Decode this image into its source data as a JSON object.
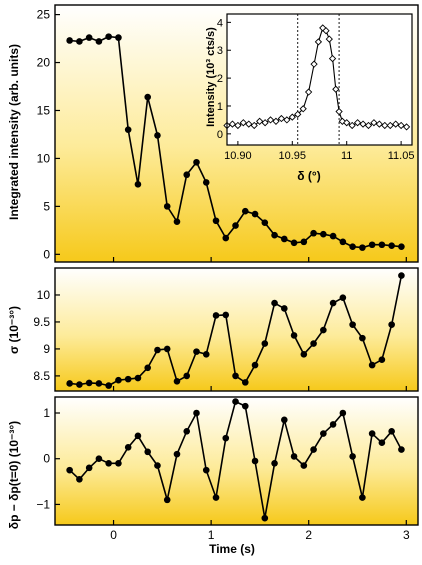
{
  "chart_data": [
    {
      "type": "line",
      "ylabel": "Integrated intensity (arb. units)",
      "xlim": [
        -0.45,
        3.0
      ],
      "ylim": [
        -0.8,
        26
      ],
      "yticks": [
        0,
        5,
        10,
        15,
        20,
        25
      ],
      "grid": false,
      "background": "gradient white-to-yellow",
      "series": [
        {
          "x": [
            -0.45,
            -0.35,
            -0.25,
            -0.15,
            -0.05,
            0.05,
            0.15,
            0.25,
            0.35,
            0.45,
            0.55,
            0.65,
            0.75,
            0.85,
            0.95,
            1.05,
            1.15,
            1.25,
            1.35,
            1.45,
            1.55,
            1.65,
            1.75,
            1.85,
            1.95,
            2.05,
            2.15,
            2.25,
            2.35,
            2.45,
            2.55,
            2.65,
            2.75,
            2.85,
            2.95
          ],
          "values": [
            22.3,
            22.2,
            22.6,
            22.2,
            22.7,
            22.6,
            13.0,
            7.3,
            16.4,
            12.4,
            5.0,
            3.4,
            8.3,
            9.6,
            7.5,
            3.5,
            1.7,
            3.0,
            4.5,
            4.2,
            3.3,
            2.0,
            1.6,
            1.2,
            1.3,
            2.2,
            2.1,
            1.9,
            1.3,
            0.8,
            0.7,
            1.0,
            1.0,
            0.9,
            0.8
          ]
        }
      ],
      "inset": {
        "type": "scatter",
        "xlabel": "δ (°)",
        "ylabel": "Intensity (10³ cts/s)",
        "xlim": [
          10.89,
          11.06
        ],
        "ylim": [
          -0.4,
          4.3
        ],
        "xticks": [
          "10.90",
          "10.95",
          "11",
          "11.05"
        ],
        "xtick_values": [
          10.9,
          10.95,
          11.0,
          11.05
        ],
        "yticks": [
          0,
          1,
          2,
          3,
          4
        ],
        "vlines": [
          10.955,
          10.993
        ],
        "marker": "open-diamond",
        "series": [
          {
            "x": [
              10.89,
              10.895,
              10.9,
              10.905,
              10.91,
              10.915,
              10.92,
              10.925,
              10.93,
              10.935,
              10.94,
              10.945,
              10.95,
              10.955,
              10.96,
              10.965,
              10.97,
              10.974,
              10.978,
              10.981,
              10.984,
              10.987,
              10.99,
              10.993,
              10.996,
              11.0,
              11.005,
              11.01,
              11.015,
              11.02,
              11.025,
              11.03,
              11.035,
              11.04,
              11.045,
              11.05,
              11.055
            ],
            "values": [
              0.3,
              0.35,
              0.3,
              0.4,
              0.35,
              0.3,
              0.45,
              0.4,
              0.5,
              0.45,
              0.55,
              0.5,
              0.6,
              0.7,
              0.9,
              1.5,
              2.5,
              3.3,
              3.8,
              3.7,
              3.4,
              2.7,
              1.6,
              0.8,
              0.45,
              0.4,
              0.3,
              0.4,
              0.35,
              0.3,
              0.4,
              0.35,
              0.3,
              0.3,
              0.35,
              0.3,
              0.25
            ]
          }
        ]
      }
    },
    {
      "type": "line",
      "ylabel": "σ (10⁻³°)",
      "xlim": [
        -0.45,
        3.0
      ],
      "ylim": [
        8.22,
        10.5
      ],
      "yticks": [
        8.5,
        9,
        9.5,
        10
      ],
      "series": [
        {
          "x": [
            -0.45,
            -0.35,
            -0.25,
            -0.15,
            -0.05,
            0.05,
            0.15,
            0.25,
            0.35,
            0.45,
            0.55,
            0.65,
            0.75,
            0.85,
            0.95,
            1.05,
            1.15,
            1.25,
            1.35,
            1.45,
            1.55,
            1.65,
            1.75,
            1.85,
            1.95,
            2.05,
            2.15,
            2.25,
            2.35,
            2.45,
            2.55,
            2.65,
            2.75,
            2.85,
            2.95
          ],
          "values": [
            8.36,
            8.34,
            8.37,
            8.36,
            8.32,
            8.42,
            8.44,
            8.46,
            8.65,
            8.98,
            9.0,
            8.4,
            8.5,
            8.95,
            8.9,
            9.62,
            9.63,
            8.5,
            8.38,
            8.7,
            9.1,
            9.85,
            9.75,
            9.25,
            8.9,
            9.1,
            9.35,
            9.85,
            9.95,
            9.45,
            9.2,
            8.7,
            8.8,
            9.45,
            10.36
          ]
        }
      ]
    },
    {
      "type": "line",
      "xlabel": "Time (s)",
      "ylabel": "δp − δp(t=0) (10⁻³°)",
      "xlim": [
        -0.45,
        3.0
      ],
      "ylim": [
        -1.45,
        1.35
      ],
      "yticks": [
        -1,
        0,
        1
      ],
      "xticks": [
        0,
        1,
        2,
        3
      ],
      "series": [
        {
          "x": [
            -0.45,
            -0.35,
            -0.25,
            -0.15,
            -0.05,
            0.05,
            0.15,
            0.25,
            0.35,
            0.45,
            0.55,
            0.65,
            0.75,
            0.85,
            0.95,
            1.05,
            1.15,
            1.25,
            1.35,
            1.45,
            1.55,
            1.65,
            1.75,
            1.85,
            1.95,
            2.05,
            2.15,
            2.25,
            2.35,
            2.45,
            2.55,
            2.65,
            2.75,
            2.85,
            2.95
          ],
          "values": [
            -0.25,
            -0.45,
            -0.2,
            0.0,
            -0.1,
            -0.1,
            0.25,
            0.5,
            0.15,
            -0.15,
            -0.9,
            0.1,
            0.6,
            1.0,
            -0.25,
            -0.85,
            0.45,
            1.25,
            1.15,
            -0.05,
            -1.3,
            -0.1,
            0.85,
            0.05,
            -0.15,
            0.2,
            0.55,
            0.75,
            1.0,
            0.05,
            -0.85,
            0.55,
            0.35,
            0.6,
            0.2
          ]
        }
      ]
    }
  ]
}
